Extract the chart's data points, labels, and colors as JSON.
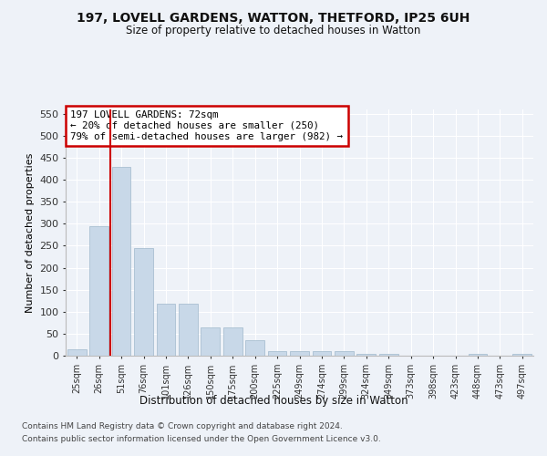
{
  "title_line1": "197, LOVELL GARDENS, WATTON, THETFORD, IP25 6UH",
  "title_line2": "Size of property relative to detached houses in Watton",
  "xlabel": "Distribution of detached houses by size in Watton",
  "ylabel": "Number of detached properties",
  "footer_line1": "Contains HM Land Registry data © Crown copyright and database right 2024.",
  "footer_line2": "Contains public sector information licensed under the Open Government Licence v3.0.",
  "annotation_line1": "197 LOVELL GARDENS: 72sqm",
  "annotation_line2": "← 20% of detached houses are smaller (250)",
  "annotation_line3": "79% of semi-detached houses are larger (982) →",
  "bar_labels": [
    "25sqm",
    "26sqm",
    "51sqm",
    "76sqm",
    "101sqm",
    "126sqm",
    "150sqm",
    "175sqm",
    "200sqm",
    "225sqm",
    "249sqm",
    "274sqm",
    "299sqm",
    "324sqm",
    "349sqm",
    "373sqm",
    "398sqm",
    "423sqm",
    "448sqm",
    "473sqm",
    "497sqm"
  ],
  "bar_values": [
    15,
    295,
    430,
    245,
    118,
    118,
    65,
    65,
    35,
    10,
    10,
    10,
    10,
    5,
    5,
    0,
    0,
    0,
    5,
    0,
    5
  ],
  "bar_color": "#c8d8e8",
  "bar_edge_color": "#a0b8cc",
  "vline_x": 1.5,
  "vline_color": "#cc0000",
  "ylim": [
    0,
    560
  ],
  "yticks": [
    0,
    50,
    100,
    150,
    200,
    250,
    300,
    350,
    400,
    450,
    500,
    550
  ],
  "bg_color": "#eef2f8",
  "grid_color": "#ffffff",
  "annotation_box_color": "#cc0000"
}
